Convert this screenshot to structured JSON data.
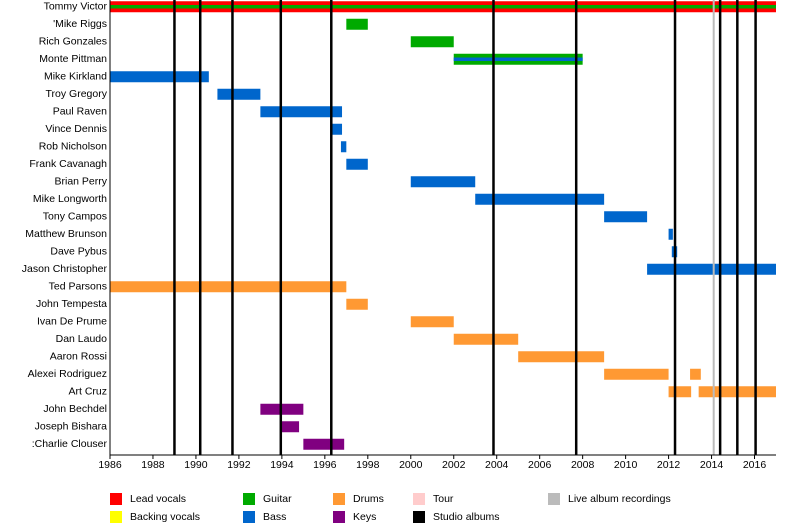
{
  "chart_data": {
    "type": "timeline",
    "xlim": [
      1986,
      2017
    ],
    "xticks": [
      1986,
      1988,
      1990,
      1992,
      1994,
      1996,
      1998,
      2000,
      2002,
      2004,
      2006,
      2008,
      2010,
      2012,
      2014,
      2016
    ],
    "legend": [
      {
        "name": "Lead vocals",
        "color": "#ff0000"
      },
      {
        "name": "Backing vocals",
        "color": "#ffff00"
      },
      {
        "name": "Guitar",
        "color": "#00aa00"
      },
      {
        "name": "Bass",
        "color": "#0066cc"
      },
      {
        "name": "Drums",
        "color": "#ff9933"
      },
      {
        "name": "Keys",
        "color": "#800080"
      },
      {
        "name": "Tour",
        "color": "#ffcccc"
      },
      {
        "name": "Studio albums",
        "color": "#000000"
      },
      {
        "name": "Live album recordings",
        "color": "#bbbbbb"
      }
    ],
    "studio_albums": [
      1989,
      1990.2,
      1991.7,
      1993.95,
      1996.3,
      2003.85,
      2007.7,
      2012.3,
      2014.4,
      2015.2,
      2016.05
    ],
    "live_albums": [
      2014.1
    ],
    "rows": [
      {
        "name": "Tommy Victor",
        "spans": [
          {
            "start": 1986,
            "end": 2017,
            "role": "Lead vocals"
          },
          {
            "start": 1986,
            "end": 2017,
            "role": "Guitar"
          }
        ]
      },
      {
        "name": "'Mike Riggs",
        "spans": [
          {
            "start": 1997,
            "end": 1998,
            "role": "Guitar"
          }
        ]
      },
      {
        "name": "Rich Gonzales",
        "spans": [
          {
            "start": 2000,
            "end": 2002,
            "role": "Guitar"
          }
        ]
      },
      {
        "name": "Monte Pittman",
        "spans": [
          {
            "start": 2002,
            "end": 2008,
            "role": "Guitar"
          },
          {
            "start": 2002,
            "end": 2008,
            "role": "Bass"
          }
        ]
      },
      {
        "name": "Mike Kirkland",
        "spans": [
          {
            "start": 1986,
            "end": 1990.6,
            "role": "Bass"
          }
        ]
      },
      {
        "name": "Troy Gregory",
        "spans": [
          {
            "start": 1991,
            "end": 1993,
            "role": "Bass"
          }
        ]
      },
      {
        "name": "Paul Raven",
        "spans": [
          {
            "start": 1993,
            "end": 1996.8,
            "role": "Bass"
          }
        ]
      },
      {
        "name": "Vince Dennis",
        "spans": [
          {
            "start": 1996.3,
            "end": 1996.8,
            "role": "Bass"
          }
        ]
      },
      {
        "name": "Rob Nicholson",
        "spans": [
          {
            "start": 1996.75,
            "end": 1997,
            "role": "Bass"
          }
        ]
      },
      {
        "name": "Frank Cavanagh",
        "spans": [
          {
            "start": 1997,
            "end": 1998,
            "role": "Bass"
          }
        ]
      },
      {
        "name": "Brian Perry",
        "spans": [
          {
            "start": 2000,
            "end": 2003,
            "role": "Bass"
          }
        ]
      },
      {
        "name": "Mike Longworth",
        "spans": [
          {
            "start": 2003,
            "end": 2009,
            "role": "Bass"
          }
        ]
      },
      {
        "name": "Tony Campos",
        "spans": [
          {
            "start": 2009,
            "end": 2011,
            "role": "Bass"
          }
        ]
      },
      {
        "name": "Matthew Brunson",
        "spans": [
          {
            "start": 2012,
            "end": 2012.2,
            "role": "Bass"
          }
        ]
      },
      {
        "name": "Dave Pybus",
        "spans": [
          {
            "start": 2012.15,
            "end": 2012.4,
            "role": "Bass"
          }
        ]
      },
      {
        "name": "Jason Christopher",
        "spans": [
          {
            "start": 2011,
            "end": 2017,
            "role": "Bass"
          }
        ]
      },
      {
        "name": "Ted Parsons",
        "spans": [
          {
            "start": 1986,
            "end": 1997,
            "role": "Drums"
          }
        ]
      },
      {
        "name": "John Tempesta",
        "spans": [
          {
            "start": 1997,
            "end": 1998,
            "role": "Drums"
          }
        ]
      },
      {
        "name": "Ivan De Prume",
        "spans": [
          {
            "start": 2000,
            "end": 2002,
            "role": "Drums"
          }
        ]
      },
      {
        "name": "Dan Laudo",
        "spans": [
          {
            "start": 2002,
            "end": 2005,
            "role": "Drums"
          }
        ]
      },
      {
        "name": "Aaron Rossi",
        "spans": [
          {
            "start": 2005,
            "end": 2009,
            "role": "Drums"
          }
        ]
      },
      {
        "name": "Alexei Rodriguez",
        "spans": [
          {
            "start": 2009,
            "end": 2012,
            "role": "Drums"
          },
          {
            "start": 2013,
            "end": 2013.5,
            "role": "Drums"
          }
        ]
      },
      {
        "name": "Art Cruz",
        "spans": [
          {
            "start": 2012,
            "end": 2013.05,
            "role": "Drums"
          },
          {
            "start": 2013.4,
            "end": 2017,
            "role": "Drums"
          }
        ]
      },
      {
        "name": "John Bechdel",
        "spans": [
          {
            "start": 1993,
            "end": 1995,
            "role": "Keys"
          }
        ]
      },
      {
        "name": "Joseph Bishara",
        "spans": [
          {
            "start": 1994,
            "end": 1994.8,
            "role": "Keys"
          }
        ]
      },
      {
        "name": ":Charlie Clouser",
        "spans": [
          {
            "start": 1995,
            "end": 1996.9,
            "role": "Keys"
          }
        ]
      }
    ]
  }
}
